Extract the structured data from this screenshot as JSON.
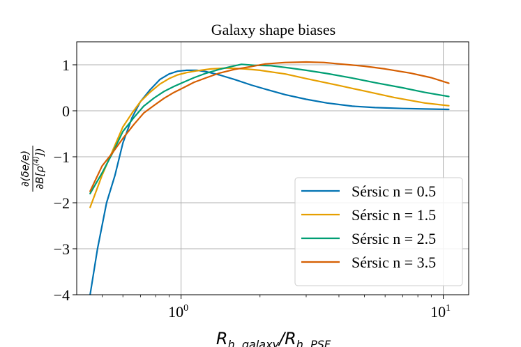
{
  "chart_data": {
    "type": "line",
    "title": "Galaxy shape biases",
    "xlabel": {
      "main": "R",
      "sub1": "h, galaxy",
      "sep": "/R",
      "sub2": "h, PSF"
    },
    "ylabel": {
      "num": "∂(δe/e)",
      "den_a": "∂B[ρ",
      "den_sup": "(4)",
      "den_b": "])"
    },
    "xscale": "log",
    "xlim": [
      0.4,
      12.5
    ],
    "ylim": [
      -4,
      1.5
    ],
    "xticks": [
      {
        "value": 1,
        "label_base": "10",
        "label_exp": "0"
      },
      {
        "value": 10,
        "label_base": "10",
        "label_exp": "1"
      }
    ],
    "yticks": [
      -4,
      -3,
      -2,
      -1,
      0,
      1
    ],
    "ytick_labels": [
      "−4",
      "−3",
      "−2",
      "−1",
      "0",
      "1"
    ],
    "grid": true,
    "legend_position": "lower-right",
    "series": [
      {
        "name": "Sérsic n = 0.5",
        "color": "#0072b2",
        "x": [
          0.45,
          0.48,
          0.52,
          0.56,
          0.6,
          0.65,
          0.7,
          0.76,
          0.83,
          0.9,
          0.97,
          1.05,
          1.15,
          1.25,
          1.4,
          1.6,
          1.85,
          2.1,
          2.5,
          3.0,
          3.6,
          4.5,
          5.5,
          7.0,
          8.5,
          10.5
        ],
        "y": [
          -4.0,
          -3.0,
          -2.0,
          -1.4,
          -0.7,
          -0.15,
          0.2,
          0.45,
          0.68,
          0.8,
          0.86,
          0.88,
          0.88,
          0.85,
          0.78,
          0.68,
          0.56,
          0.47,
          0.35,
          0.25,
          0.17,
          0.1,
          0.07,
          0.05,
          0.04,
          0.03
        ]
      },
      {
        "name": "Sérsic n = 1.5",
        "color": "#e69f00",
        "x": [
          0.45,
          0.5,
          0.55,
          0.6,
          0.65,
          0.7,
          0.76,
          0.83,
          0.9,
          0.97,
          1.05,
          1.15,
          1.3,
          1.5,
          1.75,
          2.0,
          2.5,
          3.0,
          4.0,
          5.0,
          6.5,
          8.5,
          10.5
        ],
        "y": [
          -2.1,
          -1.4,
          -0.85,
          -0.35,
          -0.05,
          0.2,
          0.4,
          0.58,
          0.7,
          0.78,
          0.83,
          0.87,
          0.91,
          0.93,
          0.91,
          0.88,
          0.8,
          0.7,
          0.55,
          0.43,
          0.29,
          0.17,
          0.11
        ]
      },
      {
        "name": "Sérsic n = 2.5",
        "color": "#009e73",
        "x": [
          0.45,
          0.5,
          0.55,
          0.6,
          0.66,
          0.72,
          0.79,
          0.86,
          0.94,
          1.02,
          1.12,
          1.25,
          1.4,
          1.55,
          1.7,
          1.9,
          2.2,
          2.6,
          3.0,
          3.6,
          4.5,
          5.5,
          7.0,
          8.5,
          10.5
        ],
        "y": [
          -1.8,
          -1.35,
          -0.9,
          -0.45,
          -0.15,
          0.1,
          0.28,
          0.42,
          0.53,
          0.62,
          0.72,
          0.82,
          0.9,
          0.96,
          1.01,
          0.99,
          0.98,
          0.93,
          0.88,
          0.81,
          0.71,
          0.61,
          0.5,
          0.4,
          0.31
        ]
      },
      {
        "name": "Sérsic n = 3.5",
        "color": "#d55e00",
        "x": [
          0.45,
          0.5,
          0.55,
          0.6,
          0.66,
          0.72,
          0.79,
          0.86,
          0.94,
          1.02,
          1.12,
          1.25,
          1.4,
          1.6,
          1.85,
          2.1,
          2.5,
          3.0,
          3.5,
          4.0,
          5.0,
          6.0,
          7.5,
          9.0,
          10.5
        ],
        "y": [
          -1.75,
          -1.2,
          -0.9,
          -0.6,
          -0.3,
          -0.05,
          0.12,
          0.27,
          0.4,
          0.5,
          0.62,
          0.72,
          0.82,
          0.9,
          0.96,
          1.02,
          1.05,
          1.06,
          1.05,
          1.02,
          0.97,
          0.91,
          0.82,
          0.72,
          0.6
        ]
      }
    ]
  }
}
